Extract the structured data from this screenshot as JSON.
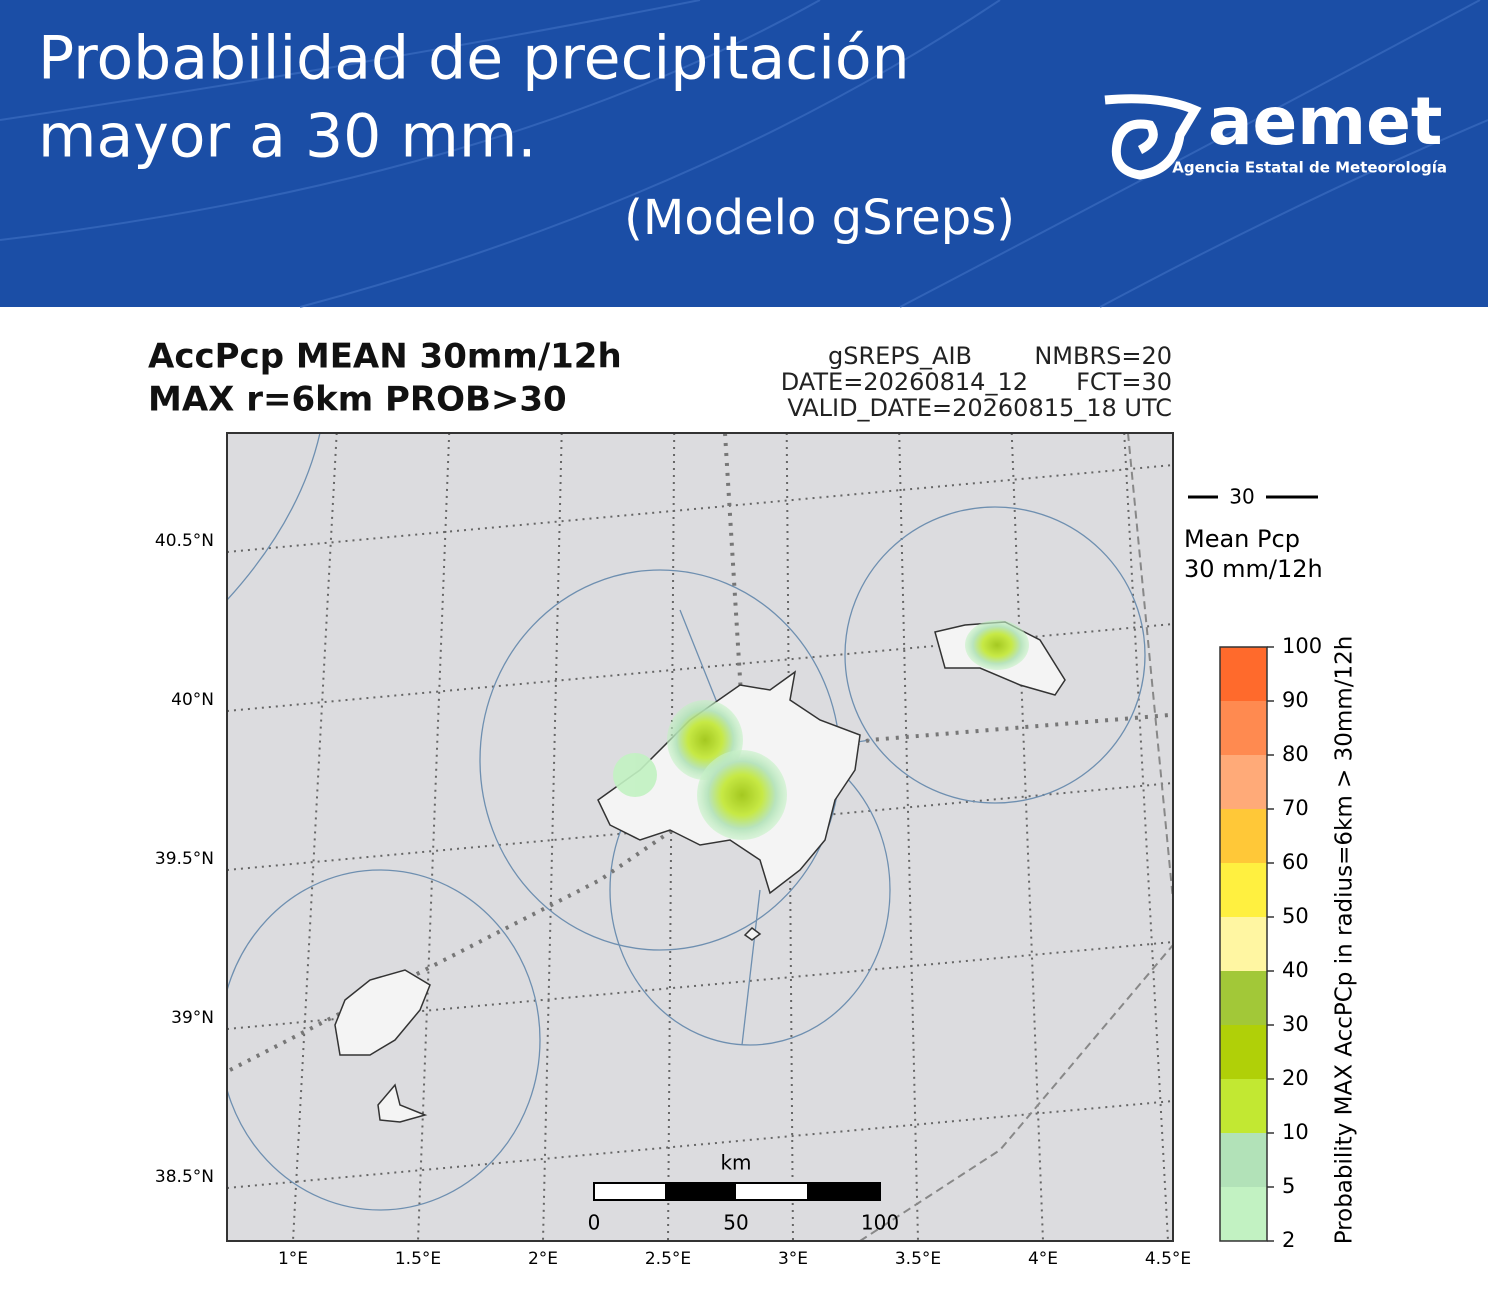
{
  "header": {
    "title_lines": [
      "Probabilidad de precipitación",
      "mayor a 30 mm."
    ],
    "subtitle": "(Modelo gSreps)",
    "logo": {
      "name": "aemet",
      "tagline": "Agencia Estatal de Meteorología"
    }
  },
  "map": {
    "title_lines": [
      "AccPcp MEAN 30mm/12h",
      "MAX r=6km PROB>30"
    ],
    "info": {
      "run": "gSREPS_AIB",
      "members": "NMBRS=20",
      "date": "DATE=20260814_12",
      "forecast": "FCT=30",
      "valid": "VALID_DATE=20260815_18 UTC"
    },
    "lat_labels": [
      "40.5°N",
      "40°N",
      "39.5°N",
      "39°N",
      "38.5°N"
    ],
    "lon_labels": [
      "1°E",
      "1.5°E",
      "2°E",
      "2.5°E",
      "3°E",
      "3.5°E",
      "4°E",
      "4.5°E"
    ],
    "scale": {
      "unit": "km",
      "ticks": [
        "0",
        "50",
        "100"
      ]
    },
    "legend": {
      "contour": "30",
      "label_lines": [
        "Mean Pcp",
        "30 mm/12h"
      ]
    },
    "colorbar": {
      "label": "Probability MAX AccPCp in radius=6km > 30mm/12h",
      "ticks": [
        2,
        5,
        10,
        20,
        30,
        40,
        50,
        60,
        70,
        80,
        90,
        100
      ],
      "colors": [
        "#c2f2c2",
        "#b2e2b8",
        "#c2e832",
        "#b0d008",
        "#a2c838",
        "#fff6a2",
        "#fff040",
        "#ffc838",
        "#ffaa78",
        "#ff8a50",
        "#ff6a2c"
      ]
    }
  }
}
